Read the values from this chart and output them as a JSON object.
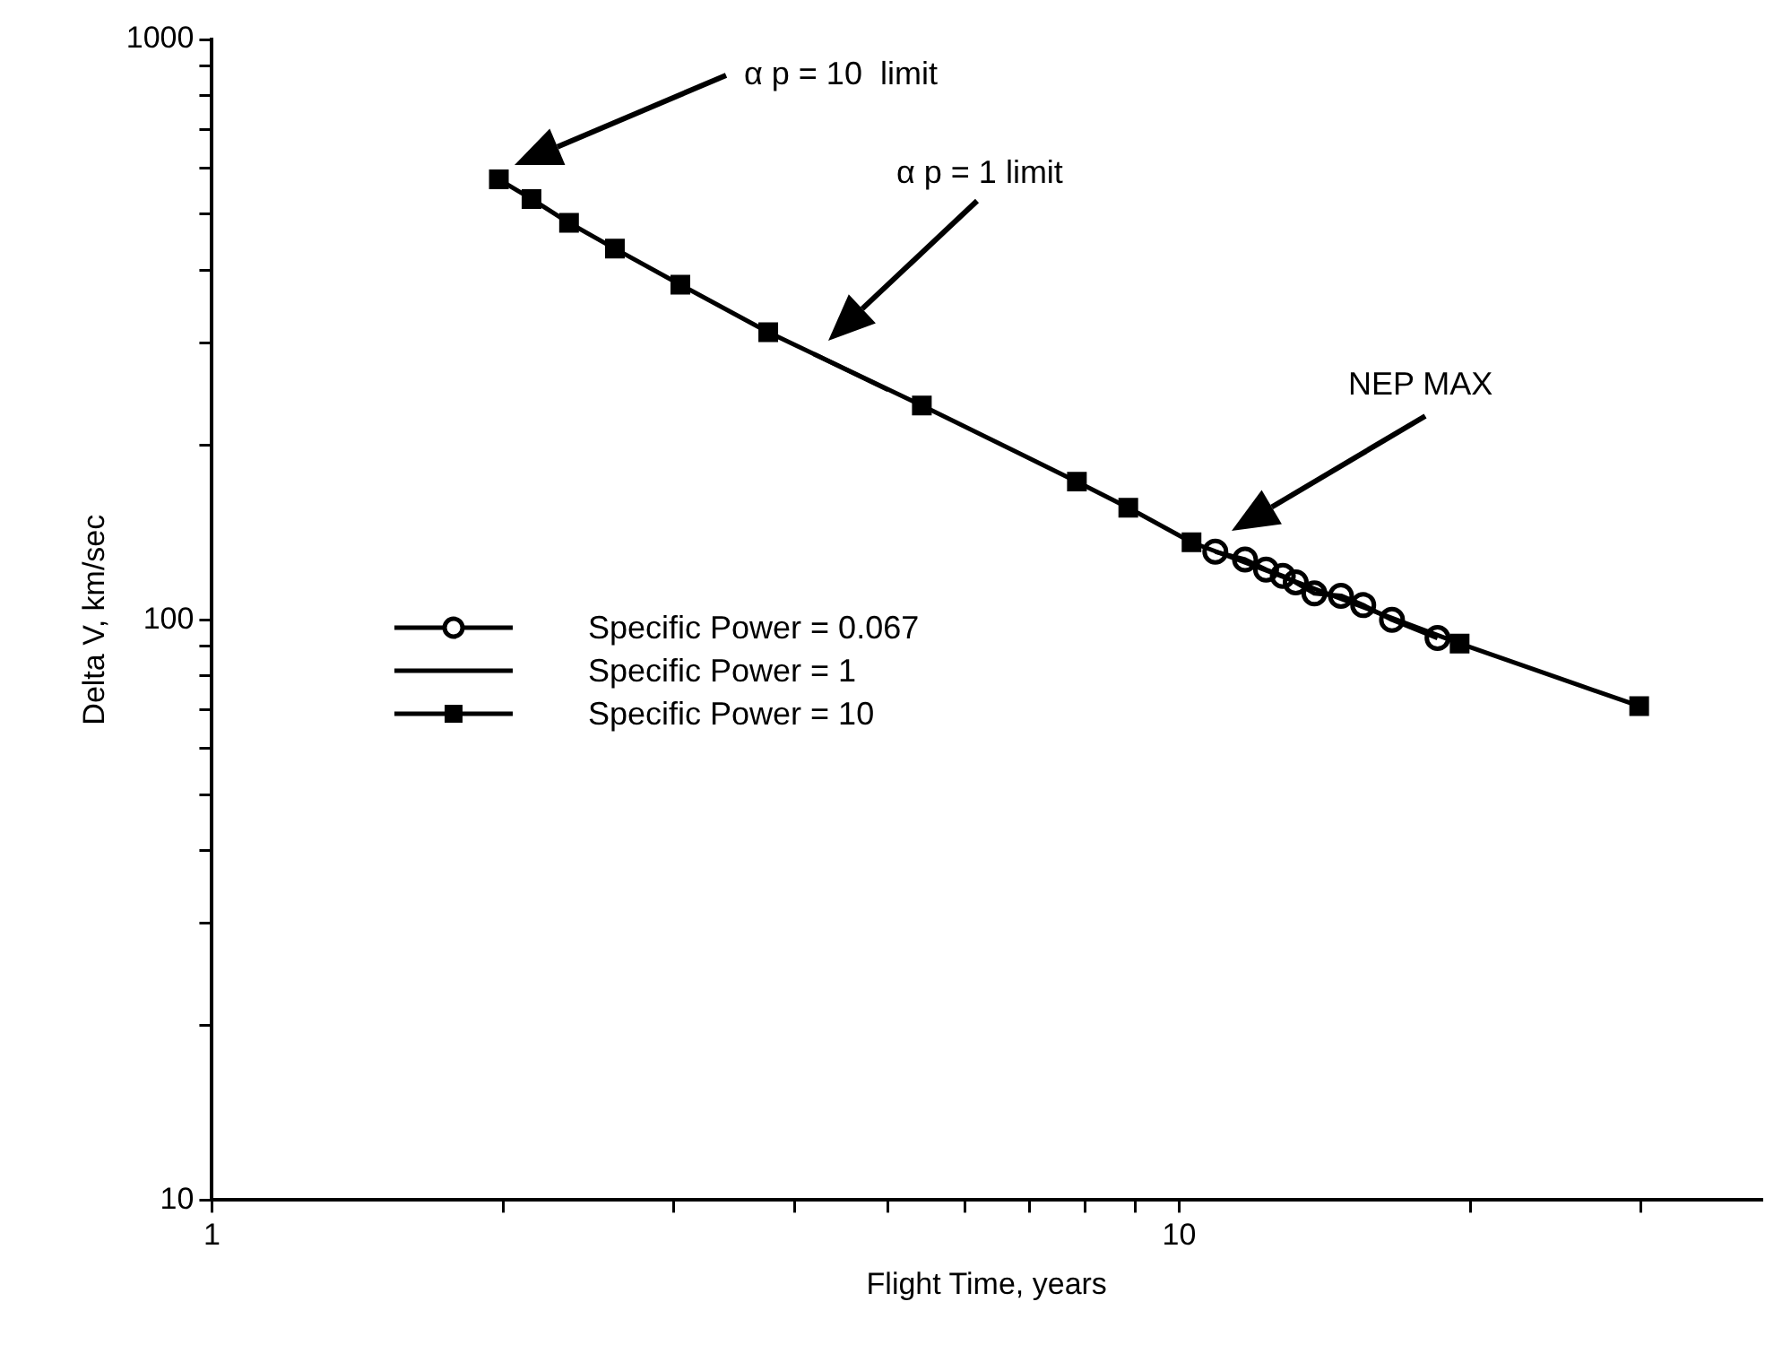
{
  "chart_data": {
    "type": "line",
    "xlabel": "Flight Time, years",
    "ylabel": "Delta V, km/sec",
    "log": "xy",
    "grid": false,
    "legend": "left",
    "xlim": [
      1,
      40
    ],
    "xticks": [
      1,
      {
        "value": 2,
        "label": null
      },
      {
        "value": 3,
        "label": null
      },
      {
        "value": 4,
        "label": null
      },
      {
        "value": 5,
        "label": null
      },
      {
        "value": 6,
        "label": null
      },
      {
        "value": 7,
        "label": null
      },
      {
        "value": 8,
        "label": null
      },
      {
        "value": 9,
        "label": null
      },
      10,
      {
        "value": 20,
        "label": null
      },
      {
        "value": 30,
        "label": null
      }
    ],
    "ylim": [
      10,
      1000
    ],
    "yticks": [
      10,
      {
        "value": 20,
        "label": null
      },
      {
        "value": 30,
        "label": null
      },
      {
        "value": 40,
        "label": null
      },
      {
        "value": 50,
        "label": null
      },
      {
        "value": 60,
        "label": null
      },
      {
        "value": 70,
        "label": null
      },
      {
        "value": 80,
        "label": null
      },
      {
        "value": 90,
        "label": null
      },
      100,
      {
        "value": 200,
        "label": null
      },
      {
        "value": 300,
        "label": null
      },
      {
        "value": 400,
        "label": null
      },
      {
        "value": 500,
        "label": null
      },
      {
        "value": 600,
        "label": null
      },
      {
        "value": 700,
        "label": null
      },
      {
        "value": 800,
        "label": null
      },
      {
        "value": 900,
        "label": null
      },
      1000
    ],
    "series": [
      {
        "name": "Specific Power = 0.067",
        "type": "line",
        "marker": "circle",
        "color": "#000000",
        "x": [
          10.9,
          11.7,
          12.3,
          12.8,
          13.2,
          13.8,
          14.7,
          15.5,
          16.6,
          18.5
        ],
        "values": [
          131,
          127,
          122,
          119,
          116,
          111,
          110,
          106,
          100,
          93
        ]
      },
      {
        "name": "Specific Power = 1",
        "type": "line",
        "marker": "none",
        "color": "#000000",
        "x": [
          4.19,
          5.0
        ],
        "values": [
          287,
          249
        ]
      },
      {
        "name": "Specific Power = 10",
        "type": "line",
        "marker": "square",
        "color": "#000000",
        "x": [
          1.98,
          2.14,
          2.34,
          2.61,
          3.05,
          3.76,
          5.42,
          7.84,
          8.86,
          10.3,
          19.5,
          29.9
        ],
        "values": [
          574,
          531,
          483,
          436,
          378,
          313,
          234,
          173,
          156,
          136,
          91,
          71
        ]
      }
    ],
    "annotations": [
      "α p = 10  limit",
      "α p = 1 limit",
      "NEP MAX"
    ]
  }
}
